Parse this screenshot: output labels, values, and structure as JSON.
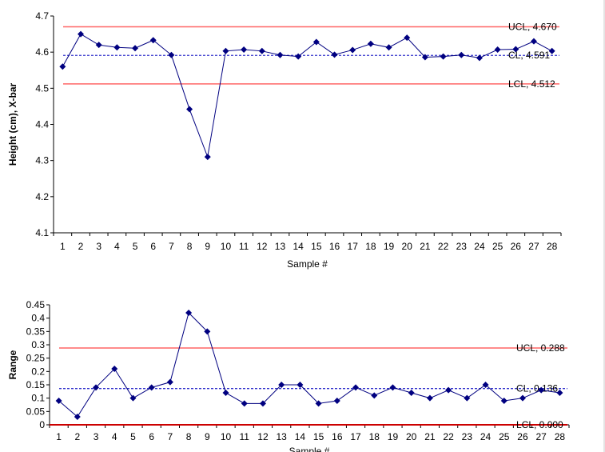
{
  "chart_data": [
    {
      "type": "line",
      "xlabel": "Sample #",
      "ylabel": "Height (cm), X-bar",
      "ylim": [
        4.1,
        4.7
      ],
      "yticks": [
        "4.1",
        "4.2",
        "4.3",
        "4.4",
        "4.5",
        "4.6",
        "4.7"
      ],
      "categories": [
        "1",
        "2",
        "3",
        "4",
        "5",
        "6",
        "7",
        "8",
        "9",
        "10",
        "11",
        "12",
        "13",
        "14",
        "15",
        "16",
        "17",
        "18",
        "19",
        "20",
        "21",
        "22",
        "23",
        "24",
        "25",
        "26",
        "27",
        "28"
      ],
      "series": [
        {
          "values": [
            4.56,
            4.65,
            4.62,
            4.613,
            4.611,
            4.633,
            4.592,
            4.442,
            4.31,
            4.603,
            4.607,
            4.603,
            4.592,
            4.588,
            4.628,
            4.593,
            4.606,
            4.623,
            4.613,
            4.64,
            4.586,
            4.588,
            4.592,
            4.584,
            4.607,
            4.608,
            4.63,
            4.603
          ],
          "color": "#000080"
        }
      ],
      "reference_lines": [
        {
          "label": "UCL, 4.670",
          "value": 4.67,
          "color": "#ff6666",
          "style": "solid"
        },
        {
          "label": "CL, 4.591",
          "value": 4.591,
          "color": "#3333cc",
          "style": "dashed"
        },
        {
          "label": "LCL, 4.512",
          "value": 4.512,
          "color": "#ff6666",
          "style": "solid"
        }
      ]
    },
    {
      "type": "line",
      "xlabel": "Sample #",
      "ylabel": "Range",
      "ylim": [
        0,
        0.45
      ],
      "yticks": [
        "0",
        "0.05",
        "0.1",
        "0.15",
        "0.2",
        "0.25",
        "0.3",
        "0.35",
        "0.4",
        "0.45"
      ],
      "categories": [
        "1",
        "2",
        "3",
        "4",
        "5",
        "6",
        "7",
        "8",
        "9",
        "10",
        "11",
        "12",
        "13",
        "14",
        "15",
        "16",
        "17",
        "18",
        "19",
        "20",
        "21",
        "22",
        "23",
        "24",
        "25",
        "26",
        "27",
        "28"
      ],
      "series": [
        {
          "values": [
            0.09,
            0.03,
            0.14,
            0.21,
            0.1,
            0.14,
            0.16,
            0.42,
            0.35,
            0.12,
            0.08,
            0.08,
            0.15,
            0.15,
            0.08,
            0.09,
            0.14,
            0.11,
            0.14,
            0.12,
            0.1,
            0.13,
            0.1,
            0.15,
            0.09,
            0.1,
            0.13,
            0.12
          ],
          "color": "#000080"
        }
      ],
      "reference_lines": [
        {
          "label": "UCL, 0.288",
          "value": 0.288,
          "color": "#ff6666",
          "style": "solid"
        },
        {
          "label": "CL, 0.136",
          "value": 0.136,
          "color": "#3333cc",
          "style": "dashed"
        },
        {
          "label": "LCL, 0.000",
          "value": 0,
          "color": "#cc0000",
          "style": "solid"
        }
      ]
    }
  ]
}
